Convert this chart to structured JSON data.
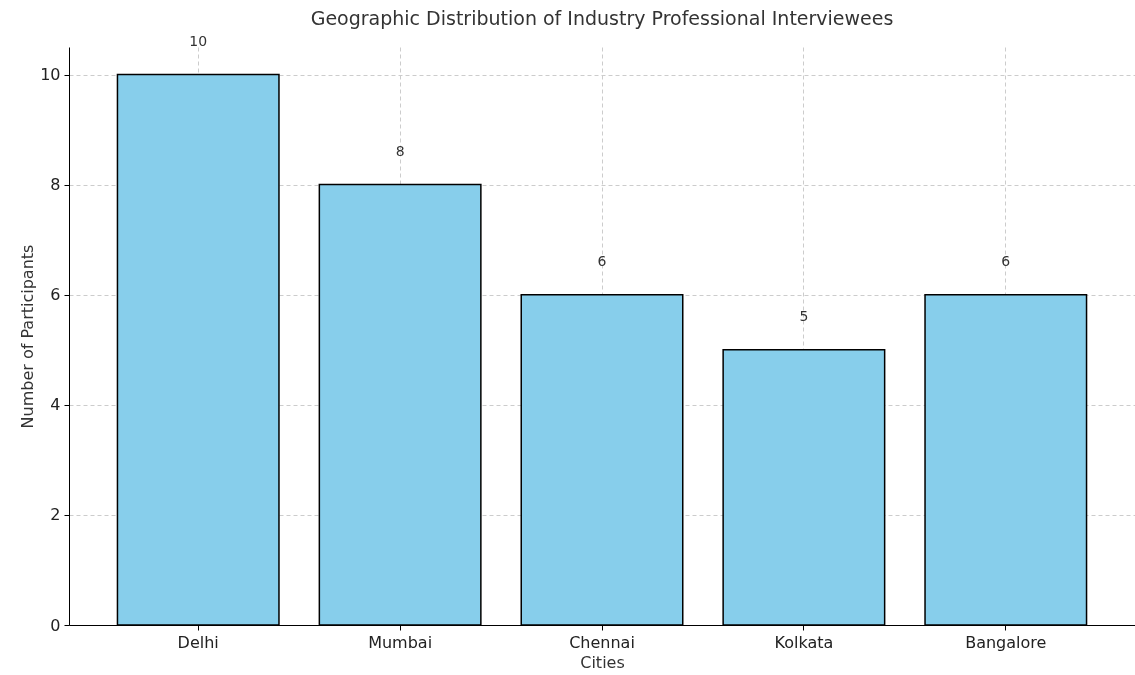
{
  "chart_data": {
    "type": "bar",
    "title": "Geographic Distribution of Industry Professional Interviewees",
    "xlabel": "Cities",
    "ylabel": "Number of Participants",
    "categories": [
      "Delhi",
      "Mumbai",
      "Chennai",
      "Kolkata",
      "Bangalore"
    ],
    "values": [
      10,
      8,
      6,
      5,
      6
    ],
    "color": "#87ceeb",
    "ylim": [
      0,
      10.5
    ],
    "yticks": [
      0,
      2,
      4,
      6,
      8,
      10
    ],
    "grid": true,
    "data_labels": true
  }
}
